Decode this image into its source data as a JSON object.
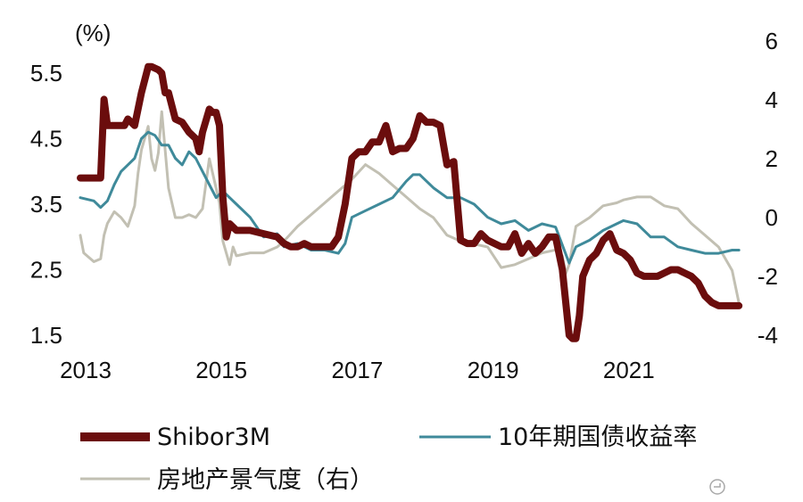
{
  "chart_data": {
    "type": "line",
    "left_axis": {
      "unit_label": "(%)",
      "ylim": [
        1.5,
        5.5
      ],
      "ticks": [
        1.5,
        2.5,
        3.5,
        4.5,
        5.5
      ]
    },
    "right_axis": {
      "ylim": [
        -4,
        6
      ],
      "ticks": [
        -4,
        -2,
        0,
        2,
        4,
        6
      ]
    },
    "x_axis": {
      "xlim": [
        2013.0,
        2022.75
      ],
      "ticks": [
        2013,
        2015,
        2017,
        2019,
        2021
      ]
    },
    "grid": false,
    "legend_position": "bottom",
    "series": [
      {
        "name": "Shibor3M",
        "axis": "left",
        "color": "#6b0d0d",
        "x": [
          2013.0,
          2013.2,
          2013.25,
          2013.3,
          2013.35,
          2013.4,
          2013.6,
          2013.65,
          2013.7,
          2013.8,
          2013.9,
          2014.0,
          2014.05,
          2014.15,
          2014.2,
          2014.25,
          2014.3,
          2014.4,
          2014.5,
          2014.6,
          2014.7,
          2014.75,
          2014.8,
          2014.9,
          2014.95,
          2015.0,
          2015.05,
          2015.1,
          2015.15,
          2015.2,
          2015.3,
          2015.5,
          2015.7,
          2015.9,
          2016.0,
          2016.1,
          2016.2,
          2016.3,
          2016.4,
          2016.5,
          2016.6,
          2016.7,
          2016.8,
          2016.9,
          2017.0,
          2017.1,
          2017.2,
          2017.3,
          2017.4,
          2017.5,
          2017.6,
          2017.7,
          2017.8,
          2017.9,
          2018.0,
          2018.1,
          2018.2,
          2018.3,
          2018.4,
          2018.5,
          2018.6,
          2018.7,
          2018.8,
          2018.9,
          2019.0,
          2019.2,
          2019.3,
          2019.4,
          2019.5,
          2019.6,
          2019.7,
          2019.8,
          2019.9,
          2020.0,
          2020.1,
          2020.15,
          2020.2,
          2020.25,
          2020.3,
          2020.35,
          2020.4,
          2020.5,
          2020.6,
          2020.7,
          2020.8,
          2020.9,
          2021.0,
          2021.1,
          2021.15,
          2021.2,
          2021.3,
          2021.4,
          2021.5,
          2021.6,
          2021.7,
          2021.8,
          2021.9,
          2022.0,
          2022.1,
          2022.2,
          2022.3,
          2022.4,
          2022.5,
          2022.6,
          2022.7
        ],
        "values": [
          3.9,
          3.9,
          3.9,
          3.9,
          5.1,
          4.7,
          4.7,
          4.7,
          4.8,
          4.7,
          5.2,
          5.6,
          5.6,
          5.55,
          5.5,
          5.2,
          5.2,
          4.8,
          4.75,
          4.6,
          4.5,
          4.3,
          4.6,
          4.95,
          4.9,
          4.9,
          4.7,
          3.6,
          3.0,
          3.2,
          3.1,
          3.1,
          3.05,
          3.0,
          2.9,
          2.85,
          2.85,
          2.9,
          2.85,
          2.85,
          2.85,
          2.85,
          3.0,
          3.5,
          4.2,
          4.3,
          4.3,
          4.45,
          4.45,
          4.7,
          4.3,
          4.35,
          4.35,
          4.5,
          4.85,
          4.75,
          4.75,
          4.7,
          4.1,
          4.15,
          2.95,
          2.9,
          2.9,
          3.05,
          2.95,
          2.85,
          2.85,
          3.05,
          2.75,
          2.9,
          2.75,
          2.85,
          3.0,
          3.0,
          2.5,
          2.0,
          1.5,
          1.45,
          1.45,
          1.8,
          2.4,
          2.65,
          2.75,
          2.95,
          3.05,
          2.8,
          2.75,
          2.65,
          2.55,
          2.45,
          2.4,
          2.4,
          2.4,
          2.45,
          2.5,
          2.5,
          2.45,
          2.4,
          2.3,
          2.1,
          2.0,
          1.95,
          1.95,
          1.95,
          1.95
        ]
      },
      {
        "name": "10年期国债收益率",
        "axis": "left",
        "color": "#3f8a9a",
        "x": [
          2013.0,
          2013.2,
          2013.3,
          2013.4,
          2013.5,
          2013.6,
          2013.7,
          2013.8,
          2013.9,
          2014.0,
          2014.1,
          2014.2,
          2014.3,
          2014.4,
          2014.5,
          2014.6,
          2014.7,
          2014.8,
          2014.9,
          2015.0,
          2015.1,
          2015.2,
          2015.3,
          2015.5,
          2015.7,
          2015.9,
          2016.0,
          2016.2,
          2016.4,
          2016.6,
          2016.8,
          2016.9,
          2017.0,
          2017.2,
          2017.4,
          2017.6,
          2017.8,
          2017.9,
          2018.0,
          2018.2,
          2018.4,
          2018.6,
          2018.8,
          2019.0,
          2019.2,
          2019.4,
          2019.6,
          2019.8,
          2020.0,
          2020.2,
          2020.3,
          2020.5,
          2020.7,
          2020.9,
          2021.0,
          2021.2,
          2021.4,
          2021.6,
          2021.8,
          2022.0,
          2022.2,
          2022.4,
          2022.6,
          2022.7
        ],
        "values": [
          3.6,
          3.55,
          3.45,
          3.55,
          3.8,
          4.0,
          4.1,
          4.2,
          4.5,
          4.6,
          4.55,
          4.4,
          4.4,
          4.2,
          4.1,
          4.3,
          4.2,
          4.0,
          3.8,
          3.6,
          3.7,
          3.6,
          3.5,
          3.3,
          3.0,
          3.05,
          2.85,
          2.9,
          2.8,
          2.8,
          2.75,
          2.9,
          3.3,
          3.4,
          3.5,
          3.6,
          3.85,
          3.95,
          3.95,
          3.75,
          3.6,
          3.6,
          3.5,
          3.3,
          3.2,
          3.25,
          3.1,
          3.2,
          3.15,
          2.6,
          2.85,
          2.95,
          3.1,
          3.2,
          3.25,
          3.2,
          3.0,
          3.0,
          2.85,
          2.8,
          2.75,
          2.75,
          2.8,
          2.8
        ]
      },
      {
        "name": "房地产景气度（右）",
        "axis": "right",
        "color": "#c2c0b3",
        "x": [
          2013.0,
          2013.05,
          2013.2,
          2013.3,
          2013.35,
          2013.4,
          2013.5,
          2013.6,
          2013.7,
          2013.8,
          2013.85,
          2013.9,
          2013.95,
          2014.0,
          2014.05,
          2014.1,
          2014.15,
          2014.2,
          2014.3,
          2014.4,
          2014.5,
          2014.6,
          2014.7,
          2014.8,
          2014.9,
          2015.0,
          2015.05,
          2015.1,
          2015.2,
          2015.25,
          2015.3,
          2015.5,
          2015.7,
          2015.9,
          2016.0,
          2016.2,
          2016.4,
          2016.6,
          2016.8,
          2017.0,
          2017.2,
          2017.4,
          2017.6,
          2017.8,
          2018.0,
          2018.2,
          2018.4,
          2018.6,
          2018.8,
          2019.0,
          2019.2,
          2019.4,
          2019.6,
          2019.8,
          2020.0,
          2020.1,
          2020.15,
          2020.2,
          2020.3,
          2020.5,
          2020.7,
          2020.9,
          2021.0,
          2021.2,
          2021.4,
          2021.6,
          2021.8,
          2022.0,
          2022.2,
          2022.4,
          2022.6,
          2022.7
        ],
        "values": [
          -0.6,
          -1.2,
          -1.5,
          -1.4,
          -0.6,
          -0.2,
          0.2,
          0.0,
          -0.3,
          0.4,
          1.5,
          2.3,
          2.7,
          3.1,
          2.0,
          1.6,
          2.2,
          3.6,
          1.0,
          0.0,
          0.0,
          0.1,
          0.0,
          0.3,
          2.0,
          1.0,
          0.5,
          -0.8,
          -1.6,
          -1.0,
          -1.3,
          -1.2,
          -1.2,
          -1.0,
          -0.8,
          -0.3,
          0.1,
          0.5,
          0.9,
          1.3,
          1.8,
          1.5,
          1.1,
          0.7,
          0.3,
          0.0,
          -0.6,
          -0.8,
          -0.9,
          -1.0,
          -1.7,
          -1.6,
          -1.4,
          -1.2,
          -1.1,
          -1.3,
          -1.9,
          -1.6,
          -0.3,
          0.0,
          0.4,
          0.5,
          0.6,
          0.7,
          0.7,
          0.4,
          0.3,
          -0.2,
          -0.6,
          -1.0,
          -1.8,
          -2.9
        ]
      }
    ]
  }
}
